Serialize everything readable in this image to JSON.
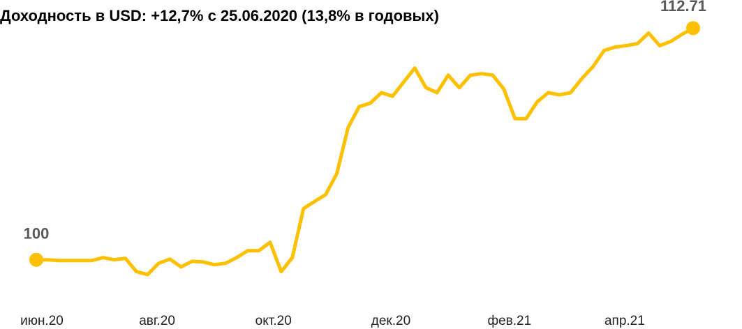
{
  "chart_data": {
    "type": "line",
    "title": "Доходность в USD: +12,7% с 25.06.2020 (13,8% в годовых)",
    "color": "#FFC000",
    "values": [
      100,
      100,
      99.96,
      99.96,
      99.96,
      99.96,
      100.12,
      100,
      100.08,
      99.35,
      99.19,
      99.81,
      100.04,
      99.61,
      99.92,
      99.88,
      99.73,
      99.81,
      100.12,
      100.5,
      100.5,
      100.96,
      99.35,
      100.12,
      102.81,
      103.2,
      103.58,
      104.74,
      107.24,
      108.4,
      108.59,
      109.17,
      108.97,
      109.75,
      110.52,
      109.44,
      109.17,
      110.13,
      109.44,
      110.13,
      110.21,
      110.13,
      109.36,
      107.74,
      107.74,
      108.67,
      109.17,
      109.05,
      109.17,
      109.94,
      110.59,
      111.48,
      111.67,
      111.75,
      111.86,
      112.44,
      111.75,
      111.98,
      112.37,
      112.71
    ],
    "xlim": [
      0,
      59
    ],
    "xticks": [
      {
        "value": 0.5,
        "label": "июн.20"
      },
      {
        "value": 10.85,
        "label": "авг.20"
      },
      {
        "value": 21.3,
        "label": "окт.20"
      },
      {
        "value": 31.85,
        "label": "дек.20"
      },
      {
        "value": 42.5,
        "label": "фев.21"
      },
      {
        "value": 52.85,
        "label": "апр.21"
      }
    ],
    "ylim": [
      98,
      114
    ]
  }
}
